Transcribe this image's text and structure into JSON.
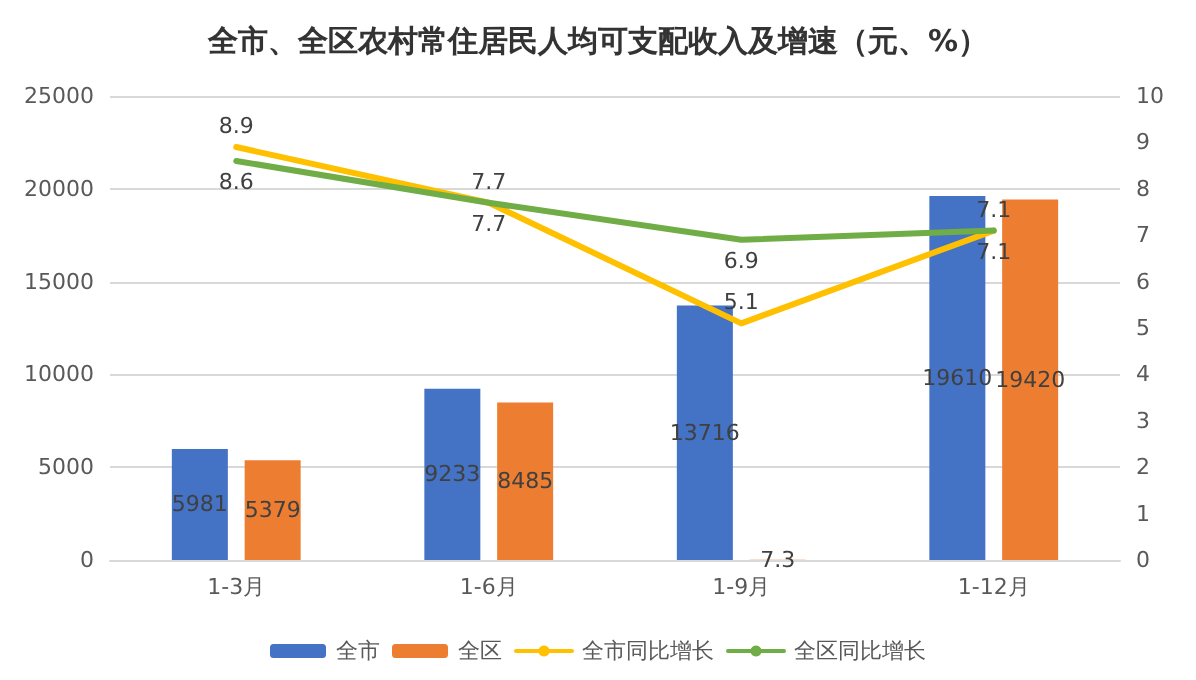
{
  "chart_data": {
    "type": "bar",
    "title": "全市、全区农村常住居民人均可支配收入及增速（元、%）",
    "categories": [
      "1-3月",
      "1-6月",
      "1-9月",
      "1-12月"
    ],
    "series": [
      {
        "name": "全市",
        "color": "#4472c4",
        "values": [
          5981,
          9233,
          13716,
          19610
        ]
      },
      {
        "name": "全区",
        "color": "#ed7d31",
        "values": [
          5379,
          8485,
          7.3,
          19420
        ]
      },
      {
        "name": "全市同比增长",
        "type": "line",
        "axis": "y2",
        "color": "#ffc000",
        "values": [
          8.9,
          7.7,
          5.1,
          7.1
        ]
      },
      {
        "name": "全区同比增长",
        "type": "line",
        "axis": "y2",
        "color": "#70ad47",
        "values": [
          8.6,
          7.7,
          6.9,
          7.1
        ]
      }
    ],
    "ylim": [
      0,
      25000
    ],
    "yticks": [
      0,
      5000,
      10000,
      15000,
      20000,
      25000
    ],
    "y2lim": [
      0,
      10
    ],
    "y2ticks": [
      0,
      1,
      2,
      3,
      4,
      5,
      6,
      7,
      8,
      9,
      10
    ],
    "grid": "y",
    "legend": "bottom",
    "data_labels": true,
    "marker": "none"
  }
}
